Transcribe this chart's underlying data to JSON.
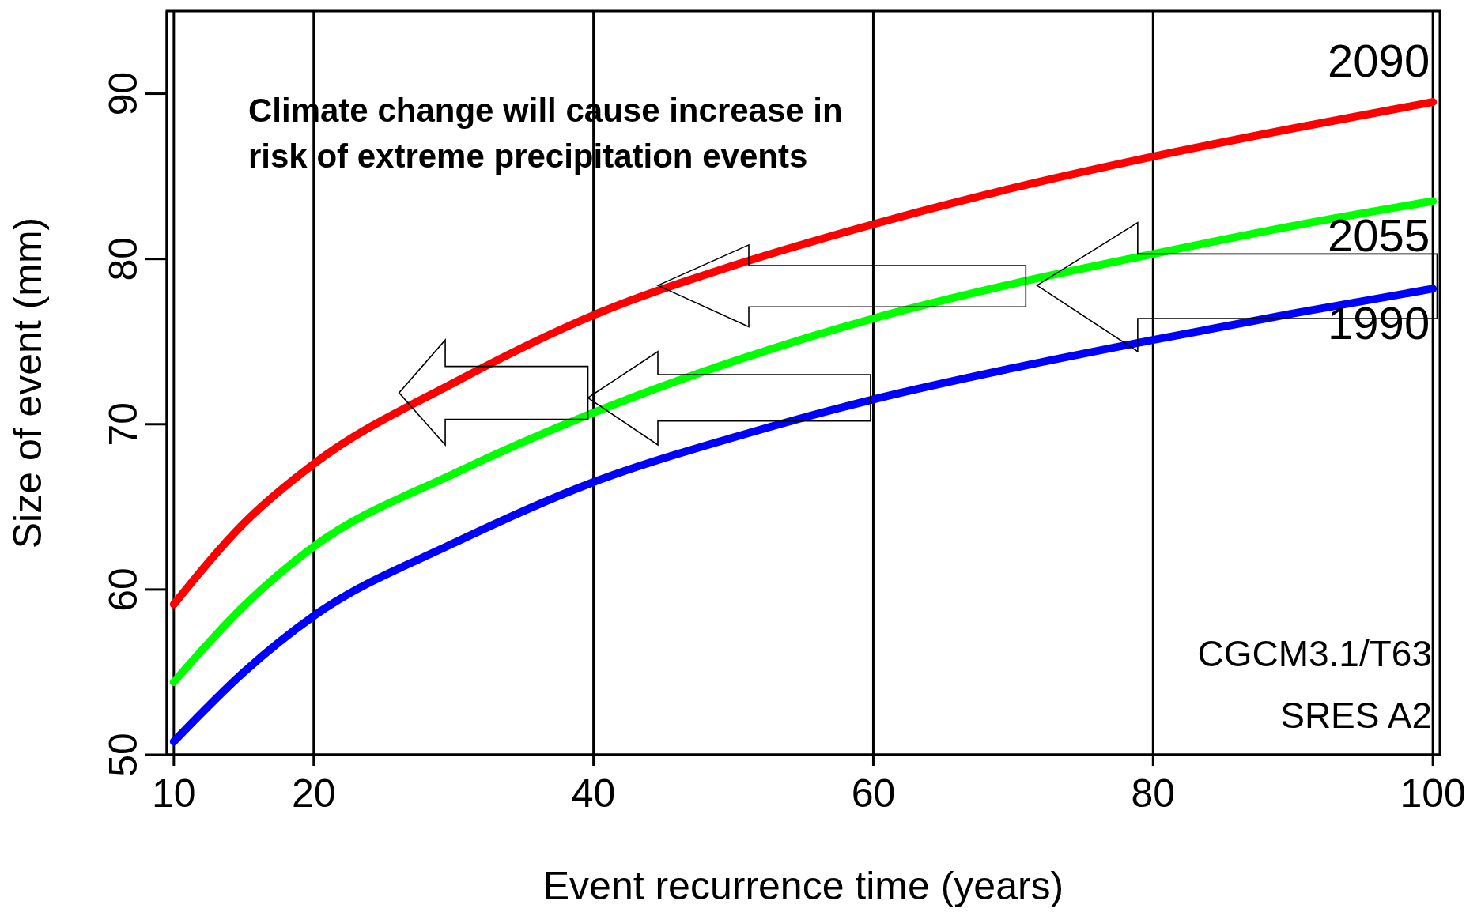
{
  "chart_data": {
    "type": "line",
    "xlabel": "Event recurrence time (years)",
    "ylabel": "Size of event (mm)",
    "x": [
      10,
      15,
      20,
      30,
      40,
      50,
      60,
      70,
      80,
      90,
      100
    ],
    "series": [
      {
        "name": "2090",
        "color": "#ff0000",
        "values": [
          59.1,
          64.0,
          67.6,
          72.5,
          76.6,
          79.6,
          82.1,
          84.3,
          86.2,
          87.9,
          89.5
        ]
      },
      {
        "name": "2055",
        "color": "#00ff00",
        "values": [
          54.4,
          59.0,
          62.6,
          67.0,
          70.7,
          73.8,
          76.4,
          78.5,
          80.3,
          82.0,
          83.5
        ]
      },
      {
        "name": "1990",
        "color": "#0000ff",
        "values": [
          50.8,
          55.0,
          58.4,
          62.8,
          66.5,
          69.2,
          71.5,
          73.4,
          75.1,
          76.7,
          78.2
        ]
      }
    ],
    "xlim": [
      9.5,
      100.5
    ],
    "xticks": [
      10,
      20,
      40,
      60,
      80,
      100
    ],
    "ylim": [
      50,
      95
    ],
    "yticks": [
      50,
      60,
      70,
      80,
      90
    ],
    "grid": "x",
    "marker": "none",
    "line_style": "solid",
    "annotations": [
      "Climate change will cause increase in risk of extreme precipitation events",
      "CGCM3.1/T63",
      "SRES A2"
    ]
  }
}
